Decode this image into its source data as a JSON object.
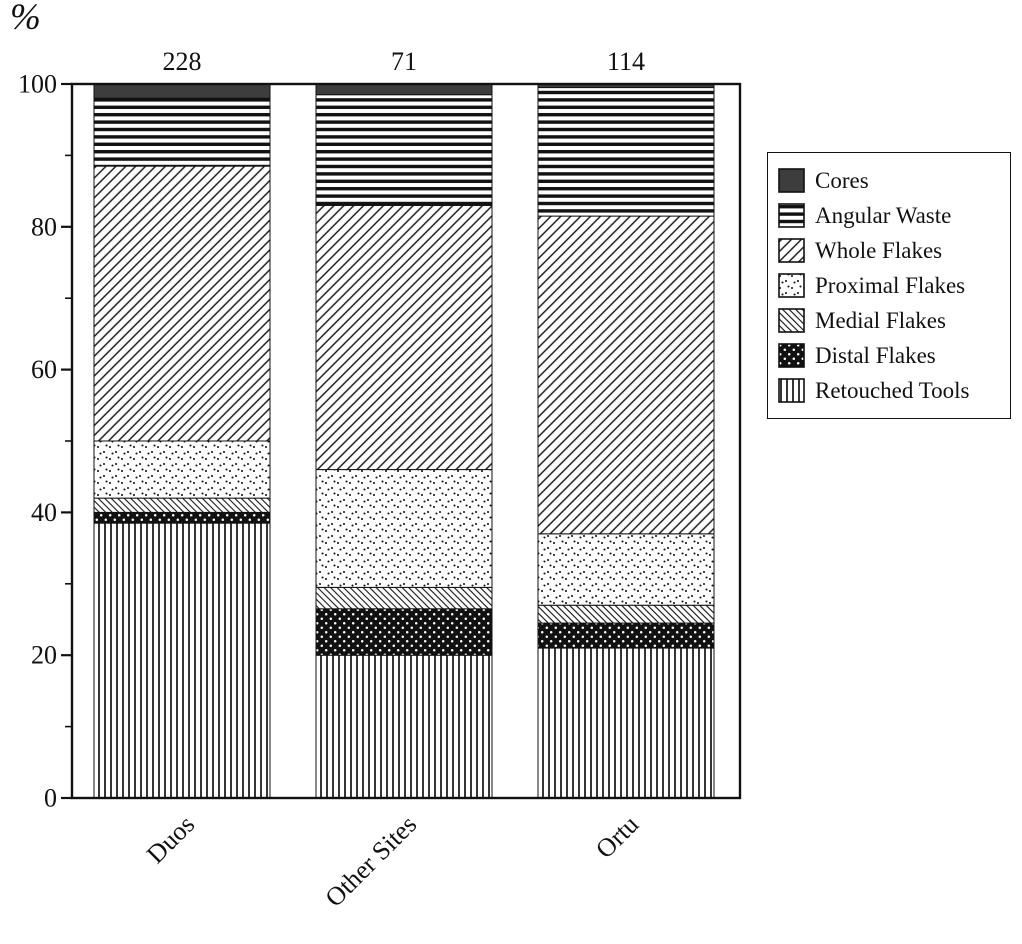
{
  "chart_data": {
    "type": "bar",
    "stacked": true,
    "units": "percent",
    "title": "",
    "xlabel": "",
    "ylabel": "%",
    "ylim": [
      0,
      100
    ],
    "yticks_major": [
      0,
      20,
      40,
      60,
      80,
      100
    ],
    "yticks_minor": [
      10,
      30,
      50,
      70,
      90
    ],
    "grid": false,
    "categories": [
      "Duos",
      "Other Sites",
      "Ortu"
    ],
    "bar_totals": [
      228,
      71,
      114
    ],
    "series": [
      {
        "name": "Retouched Tools",
        "pattern": "vertical-lines",
        "values": [
          38.5,
          20,
          21
        ]
      },
      {
        "name": "Distal Flakes",
        "pattern": "black-white-dots",
        "values": [
          1.5,
          6.5,
          3.5
        ]
      },
      {
        "name": "Medial Flakes",
        "pattern": "backslash-hatch",
        "values": [
          2,
          3,
          2.5
        ]
      },
      {
        "name": "Proximal Flakes",
        "pattern": "sparse-dots",
        "values": [
          8,
          16.5,
          10
        ]
      },
      {
        "name": "Whole Flakes",
        "pattern": "slash-hatch",
        "values": [
          38.5,
          37,
          44.5
        ]
      },
      {
        "name": "Angular Waste",
        "pattern": "horizontal-lines",
        "values": [
          9.5,
          15.5,
          18
        ]
      },
      {
        "name": "Cores",
        "pattern": "solid-dark",
        "values": [
          2,
          1.5,
          0.5
        ]
      }
    ],
    "legend": {
      "position": "right",
      "entries": [
        "Cores",
        "Angular Waste",
        "Whole Flakes",
        "Proximal Flakes",
        "Medial Flakes",
        "Distal Flakes",
        "Retouched Tools"
      ]
    },
    "colors": {
      "ink": "#111111",
      "cores_fill": "#3d3d3d",
      "background": "#ffffff"
    }
  }
}
